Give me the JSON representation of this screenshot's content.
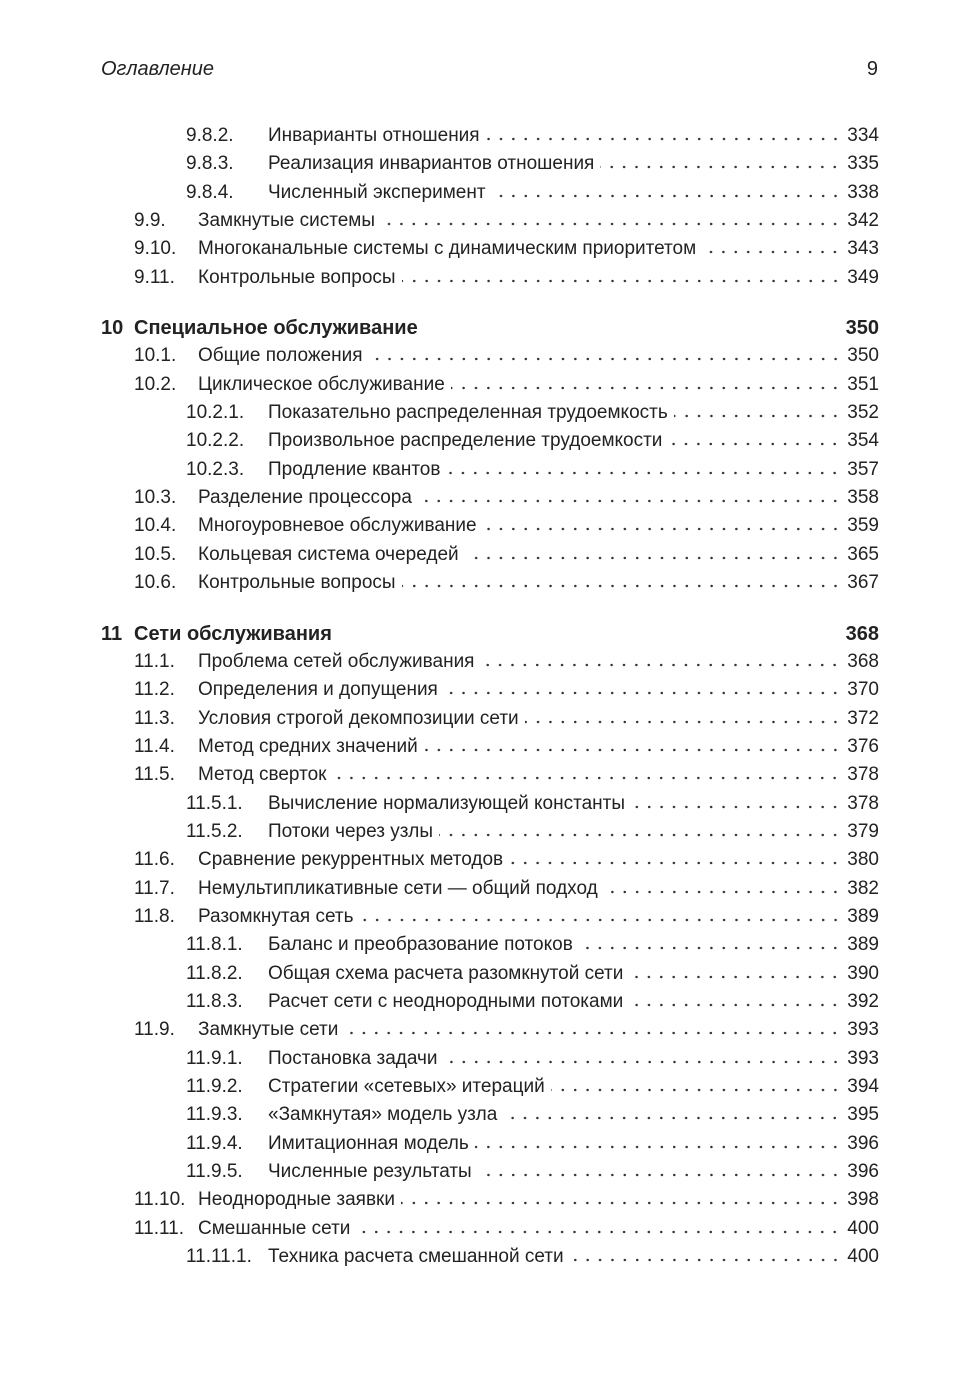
{
  "header": {
    "title": "Оглавление",
    "page": "9"
  },
  "entries": [
    {
      "level": 2,
      "num": "9.8.2.",
      "title": "Инварианты отношения",
      "page": "334"
    },
    {
      "level": 2,
      "num": "9.8.3.",
      "title": "Реализация инвариантов отношения",
      "page": "335"
    },
    {
      "level": 2,
      "num": "9.8.4.",
      "title": "Численный эксперимент",
      "page": "338"
    },
    {
      "level": 1,
      "num": "9.9.",
      "title": "Замкнутые системы",
      "page": "342"
    },
    {
      "level": 1,
      "num": "9.10.",
      "title": "Многоканальные системы с динамическим приоритетом",
      "page": "343"
    },
    {
      "level": 1,
      "num": "9.11.",
      "title": "Контрольные вопросы",
      "page": "349"
    },
    {
      "level": 0,
      "num": "10",
      "title": "Специальное обслуживание",
      "page": "350"
    },
    {
      "level": 1,
      "num": "10.1.",
      "title": "Общие положения",
      "page": "350"
    },
    {
      "level": 1,
      "num": "10.2.",
      "title": "Циклическое обслуживание",
      "page": "351"
    },
    {
      "level": 2,
      "num": "10.2.1.",
      "title": "Показательно распределенная трудоемкость",
      "page": "352"
    },
    {
      "level": 2,
      "num": "10.2.2.",
      "title": "Произвольное распределение трудоемкости",
      "page": "354"
    },
    {
      "level": 2,
      "num": "10.2.3.",
      "title": "Продление квантов",
      "page": "357"
    },
    {
      "level": 1,
      "num": "10.3.",
      "title": "Разделение процессора",
      "page": "358"
    },
    {
      "level": 1,
      "num": "10.4.",
      "title": "Многоуровневое обслуживание",
      "page": "359"
    },
    {
      "level": 1,
      "num": "10.5.",
      "title": "Кольцевая система очередей",
      "page": "365"
    },
    {
      "level": 1,
      "num": "10.6.",
      "title": "Контрольные вопросы",
      "page": "367"
    },
    {
      "level": 0,
      "num": "11",
      "title": "Сети обслуживания",
      "page": "368"
    },
    {
      "level": 1,
      "num": "11.1.",
      "title": "Проблема сетей обслуживания",
      "page": "368"
    },
    {
      "level": 1,
      "num": "11.2.",
      "title": "Определения и допущения",
      "page": "370"
    },
    {
      "level": 1,
      "num": "11.3.",
      "title": "Условия строгой декомпозиции сети",
      "page": "372"
    },
    {
      "level": 1,
      "num": "11.4.",
      "title": "Метод средних значений",
      "page": "376"
    },
    {
      "level": 1,
      "num": "11.5.",
      "title": "Метод сверток",
      "page": "378"
    },
    {
      "level": 2,
      "num": "11.5.1.",
      "title": "Вычисление нормализующей константы",
      "page": "378"
    },
    {
      "level": 2,
      "num": "11.5.2.",
      "title": "Потоки через узлы",
      "page": "379"
    },
    {
      "level": 1,
      "num": "11.6.",
      "title": "Сравнение рекуррентных методов",
      "page": "380"
    },
    {
      "level": 1,
      "num": "11.7.",
      "title": "Немультипликативные сети — общий подход",
      "page": "382"
    },
    {
      "level": 1,
      "num": "11.8.",
      "title": "Разомкнутая сеть",
      "page": "389"
    },
    {
      "level": 2,
      "num": "11.8.1.",
      "title": "Баланс и преобразование потоков",
      "page": "389"
    },
    {
      "level": 2,
      "num": "11.8.2.",
      "title": "Общая схема расчета разомкнутой сети",
      "page": "390"
    },
    {
      "level": 2,
      "num": "11.8.3.",
      "title": "Расчет сети с неоднородными потоками",
      "page": "392"
    },
    {
      "level": 1,
      "num": "11.9.",
      "title": "Замкнутые сети",
      "page": "393"
    },
    {
      "level": 2,
      "num": "11.9.1.",
      "title": "Постановка задачи",
      "page": "393"
    },
    {
      "level": 2,
      "num": "11.9.2.",
      "title": "Стратегии «сетевых» итераций",
      "page": "394"
    },
    {
      "level": 2,
      "num": "11.9.3.",
      "title": "«Замкнутая» модель узла",
      "page": "395"
    },
    {
      "level": 2,
      "num": "11.9.4.",
      "title": "Имитационная модель",
      "page": "396"
    },
    {
      "level": 2,
      "num": "11.9.5.",
      "title": "Численные результаты",
      "page": "396"
    },
    {
      "level": 1,
      "num": "11.10.",
      "title": "Неоднородные заявки",
      "page": "398"
    },
    {
      "level": 1,
      "num": "11.11.",
      "title": "Смешанные сети",
      "page": "400"
    },
    {
      "level": 2,
      "num": "11.11.1.",
      "title": "Техника расчета смешанной сети",
      "page": "400"
    }
  ]
}
